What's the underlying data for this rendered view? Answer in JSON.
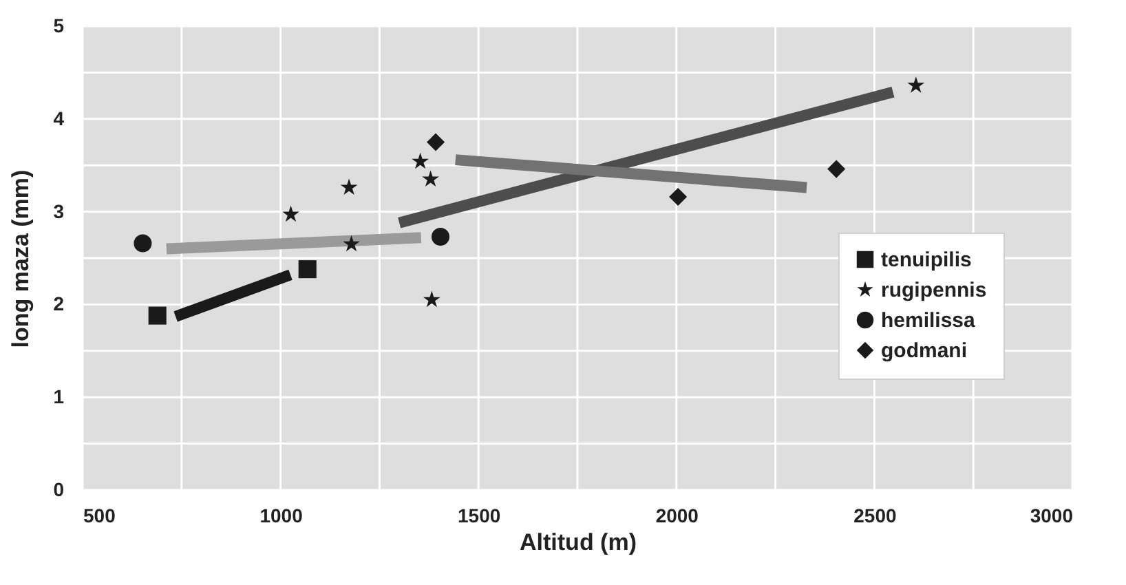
{
  "chart_data": {
    "type": "scatter",
    "xlabel": "Altitud (m)",
    "ylabel": "long maza (mm)",
    "xlim": [
      500,
      3000
    ],
    "ylim": [
      0,
      5
    ],
    "xticks": [
      500,
      {
        "value": 750,
        "label": null
      },
      1000,
      {
        "value": 1250,
        "label": null
      },
      1500,
      {
        "value": 1750,
        "label": null
      },
      2000,
      {
        "value": 2250,
        "label": null
      },
      2500,
      {
        "value": 2750,
        "label": null
      },
      3000
    ],
    "yticks": [
      0,
      {
        "value": 0.5,
        "label": null
      },
      1,
      {
        "value": 1.5,
        "label": null
      },
      2,
      {
        "value": 2.5,
        "label": null
      },
      3,
      {
        "value": 3.5,
        "label": null
      },
      4,
      {
        "value": 4.5,
        "label": null
      },
      5
    ],
    "grid": true,
    "legend": "right",
    "series": [
      {
        "type": "line",
        "color": "#1a1a1a",
        "x": [
          735,
          1025
        ],
        "values": [
          1.87,
          2.32
        ]
      },
      {
        "type": "line",
        "color": "#4d4d4d",
        "x": [
          1300,
          2547
        ],
        "values": [
          2.88,
          4.29
        ]
      },
      {
        "type": "line",
        "color": "#9a9a9a",
        "x": [
          712,
          1355
        ],
        "values": [
          2.6,
          2.72
        ]
      },
      {
        "type": "line",
        "color": "#727272",
        "x": [
          1442,
          2329
        ],
        "values": [
          3.56,
          3.26
        ]
      },
      {
        "name": "tenuipilis",
        "marker": "square",
        "color": "#1a1a1a",
        "x": [
          689,
          1068
        ],
        "values": [
          1.88,
          2.38
        ]
      },
      {
        "name": "rugipennis",
        "marker": "star",
        "color": "#1a1a1a",
        "x": [
          1026,
          1173,
          1179,
          1353,
          1379,
          1382,
          2605
        ],
        "values": [
          2.97,
          3.26,
          2.65,
          3.54,
          3.35,
          2.05,
          4.36
        ]
      },
      {
        "name": "hemilissa",
        "marker": "circle",
        "color": "#1a1a1a",
        "x": [
          652,
          1404
        ],
        "values": [
          2.66,
          2.73
        ]
      },
      {
        "name": "godmani",
        "marker": "diamond",
        "color": "#1a1a1a",
        "x": [
          1392,
          2004,
          2404
        ],
        "values": [
          3.75,
          3.16,
          3.46
        ]
      }
    ]
  }
}
